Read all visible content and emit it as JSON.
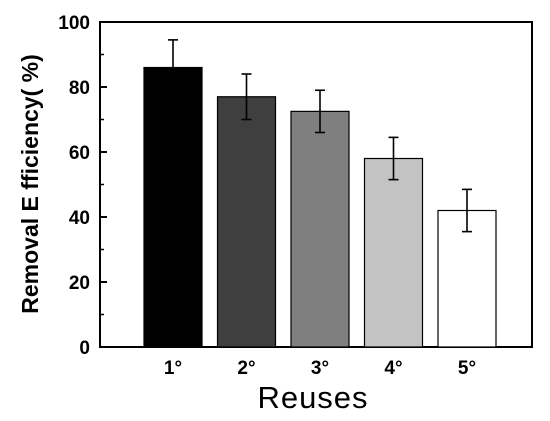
{
  "chart_data": {
    "type": "bar",
    "title": "",
    "xlabel": "Reuses",
    "ylabel": "Removal E fficiency(  %)",
    "categories": [
      "1°",
      "2°",
      "3°",
      "4°",
      "5°"
    ],
    "values": [
      86,
      77,
      72.5,
      58,
      42
    ],
    "errors": [
      8.5,
      7,
      6.5,
      6.5,
      6.5
    ],
    "ylim": [
      0,
      100
    ],
    "yticks": [
      "0",
      "20",
      "40",
      "60",
      "80",
      "100"
    ],
    "ytick_values": [
      0,
      20,
      40,
      60,
      80,
      100
    ],
    "grid": false,
    "bar_colors": [
      "#000000",
      "#3f3f3f",
      "#7f7f7f",
      "#c3c3c3",
      "#ffffff"
    ]
  }
}
